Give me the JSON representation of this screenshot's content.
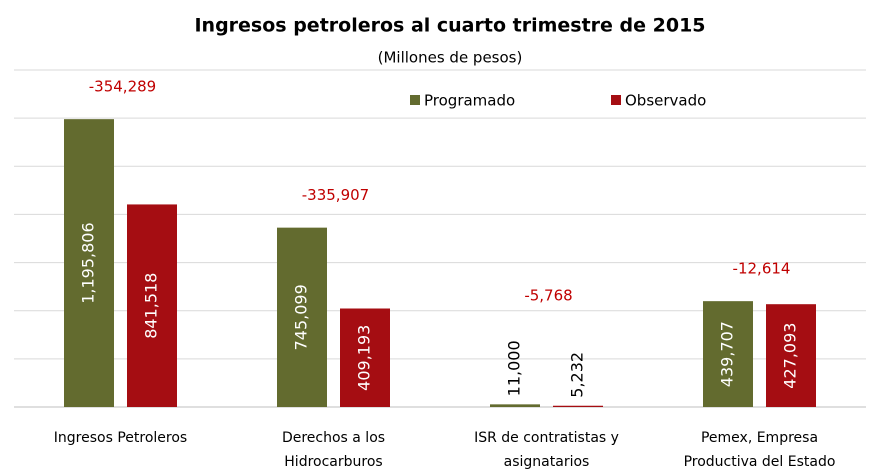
{
  "chart_data": {
    "type": "bar",
    "title": "Ingresos petroleros al cuarto trimestre de 2015",
    "subtitle": "(Millones de pesos)",
    "categories": [
      [
        "Ingresos Petroleros"
      ],
      [
        "Derechos a los",
        "Hidrocarburos"
      ],
      [
        "ISR de contratistas y",
        "asignatarios"
      ],
      [
        "Pemex, Empresa",
        "Productiva del Estado"
      ]
    ],
    "series": [
      {
        "name": "Programado",
        "color": "#636b2f",
        "values": [
          1195806,
          745099,
          11000,
          439707
        ],
        "value_labels": [
          "1,195,806",
          "745,099",
          "11,000",
          "439,707"
        ]
      },
      {
        "name": "Observado",
        "color": "#a50d12",
        "values": [
          841518,
          409193,
          5232,
          427093
        ],
        "value_labels": [
          "841,518",
          "409,193",
          "5,232",
          "427,093"
        ]
      }
    ],
    "differences": {
      "values": [
        -354289,
        -335907,
        -5768,
        -12614
      ],
      "value_labels": [
        "-354,289",
        "-335,907",
        "-5,768",
        "-12,614"
      ],
      "color": "#c00000"
    },
    "ylim": [
      0,
      1400000
    ],
    "yticks": [
      0,
      200000,
      400000,
      600000,
      800000,
      1000000,
      1200000,
      1400000
    ],
    "grid": true,
    "legend": "top"
  }
}
